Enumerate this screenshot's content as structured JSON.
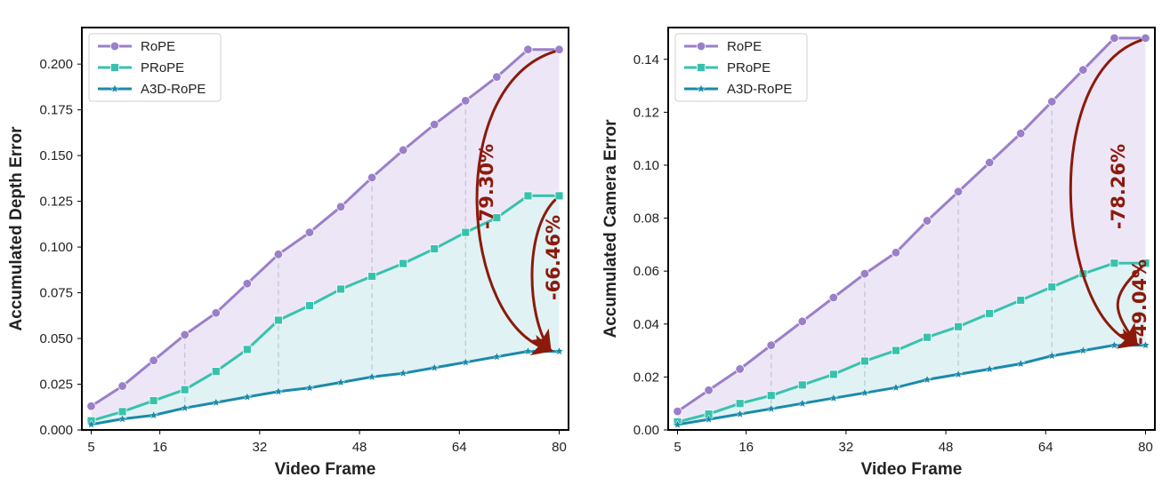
{
  "chart_data": [
    {
      "type": "line",
      "xlabel": "Video Frame",
      "ylabel": "Accumulated Depth Error",
      "x": [
        5,
        10,
        15,
        20,
        25,
        30,
        35,
        40,
        45,
        50,
        55,
        60,
        65,
        70,
        75,
        80
      ],
      "xticks": [
        5,
        16,
        32,
        48,
        64,
        80
      ],
      "xlim": [
        3.5,
        81.5
      ],
      "ylim": [
        0,
        0.22
      ],
      "yticks": [
        "0.000",
        "0.025",
        "0.050",
        "0.075",
        "0.100",
        "0.125",
        "0.150",
        "0.175",
        "0.200"
      ],
      "grid": false,
      "legend_position": "top-left",
      "series": [
        {
          "name": "RoPE",
          "color": "#9b7fc8",
          "marker": "circle",
          "values": [
            0.013,
            0.024,
            0.038,
            0.052,
            0.064,
            0.08,
            0.096,
            0.108,
            0.122,
            0.138,
            0.153,
            0.167,
            0.18,
            0.193,
            0.208,
            0.208
          ]
        },
        {
          "name": "PRoPE",
          "color": "#38c2ad",
          "marker": "square",
          "values": [
            0.005,
            0.01,
            0.016,
            0.022,
            0.032,
            0.044,
            0.06,
            0.068,
            0.077,
            0.084,
            0.091,
            0.099,
            0.108,
            0.116,
            0.128,
            0.128
          ]
        },
        {
          "name": "A3D-RoPE",
          "color": "#1a8aab",
          "marker": "star",
          "values": [
            0.003,
            0.006,
            0.008,
            0.012,
            0.015,
            0.018,
            0.021,
            0.023,
            0.026,
            0.029,
            0.031,
            0.034,
            0.037,
            0.04,
            0.043,
            0.043
          ]
        }
      ],
      "annotations": [
        {
          "text": "-79.30%",
          "from": "RoPE",
          "to": "A3D-RoPE"
        },
        {
          "text": "-66.46%",
          "from": "PRoPE",
          "to": "A3D-RoPE"
        }
      ]
    },
    {
      "type": "line",
      "xlabel": "Video Frame",
      "ylabel": "Accumulated Camera Error",
      "x": [
        5,
        10,
        15,
        20,
        25,
        30,
        35,
        40,
        45,
        50,
        55,
        60,
        65,
        70,
        75,
        80
      ],
      "xticks": [
        5,
        16,
        32,
        48,
        64,
        80
      ],
      "xlim": [
        3.5,
        81.5
      ],
      "ylim": [
        0,
        0.152
      ],
      "yticks": [
        "0.00",
        "0.02",
        "0.04",
        "0.06",
        "0.08",
        "0.10",
        "0.12",
        "0.14"
      ],
      "grid": false,
      "legend_position": "top-left",
      "series": [
        {
          "name": "RoPE",
          "color": "#9b7fc8",
          "marker": "circle",
          "values": [
            0.007,
            0.015,
            0.023,
            0.032,
            0.041,
            0.05,
            0.059,
            0.067,
            0.079,
            0.09,
            0.101,
            0.112,
            0.124,
            0.136,
            0.148,
            0.148
          ]
        },
        {
          "name": "PRoPE",
          "color": "#38c2ad",
          "marker": "square",
          "values": [
            0.003,
            0.006,
            0.01,
            0.013,
            0.017,
            0.021,
            0.026,
            0.03,
            0.035,
            0.039,
            0.044,
            0.049,
            0.054,
            0.059,
            0.063,
            0.063
          ]
        },
        {
          "name": "A3D-RoPE",
          "color": "#1a8aab",
          "marker": "star",
          "values": [
            0.002,
            0.004,
            0.006,
            0.008,
            0.01,
            0.012,
            0.014,
            0.016,
            0.019,
            0.021,
            0.023,
            0.025,
            0.028,
            0.03,
            0.032,
            0.032
          ]
        }
      ],
      "annotations": [
        {
          "text": "-78.26%",
          "from": "RoPE",
          "to": "A3D-RoPE"
        },
        {
          "text": "-49.04%",
          "from": "PRoPE",
          "to": "A3D-RoPE"
        }
      ]
    }
  ],
  "colors": {
    "rope_fill": "#ede6f6",
    "prope_fill": "#e0f2f4",
    "annotation": "#8b1a0c",
    "dashed_guides": "#c4c7d8"
  }
}
